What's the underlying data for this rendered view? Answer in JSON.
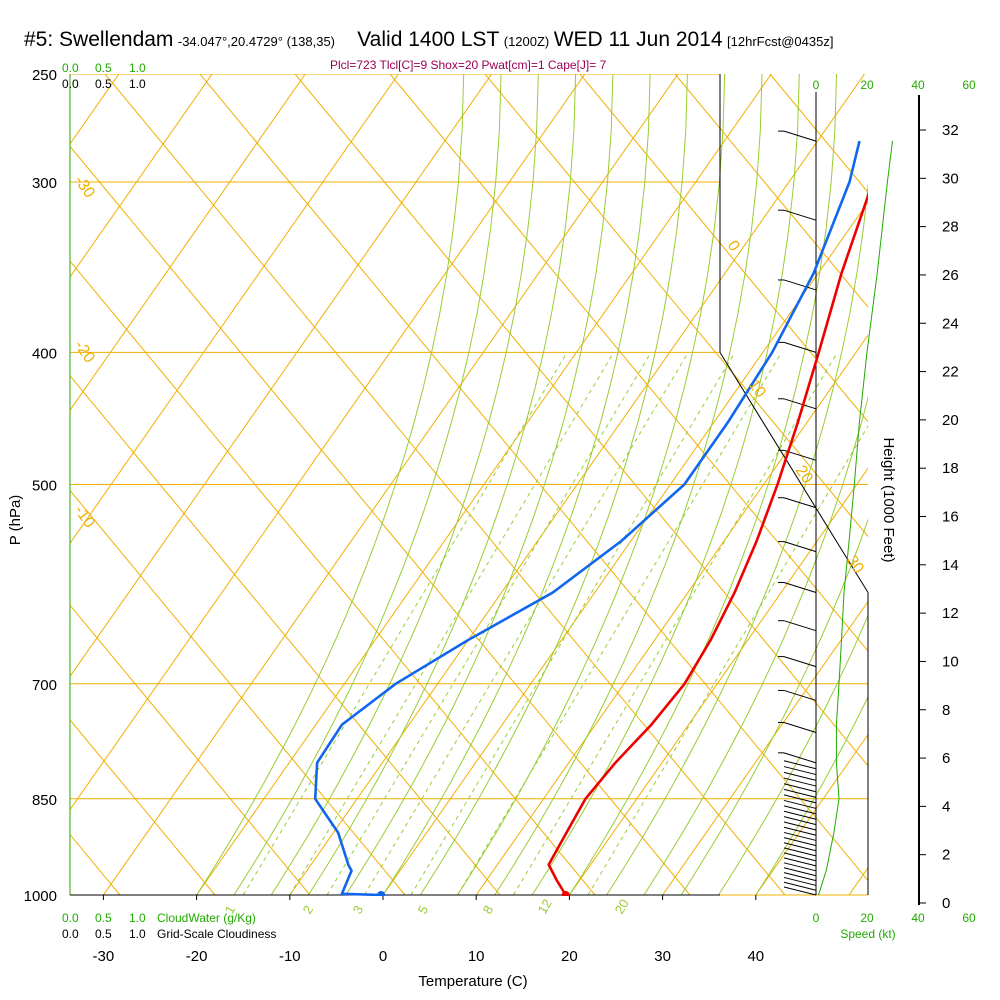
{
  "header": {
    "station": "#5: Swellendam",
    "coords": "-34.047°,20.4729° (138,35)",
    "valid": "Valid 1400 LST",
    "zulu": "(1200Z)",
    "date": "WED 11 Jun 2014",
    "forecast": "[12hrFcst@0435z]"
  },
  "params_line": "Plcl=723 Tlcl[C]=9 Shox=20 Pwat[cm]=1 Cape[J]= 7",
  "chart_data": {
    "type": "line",
    "title": "#5: Swellendam",
    "xlabel": "Temperature (C)",
    "ylabel": "P (hPa)",
    "y2label": "Height (1000 Feet)",
    "x_ticks": [
      "-30",
      "-20",
      "-10",
      "0",
      "10",
      "20",
      "30",
      "40"
    ],
    "y_ticks": [
      "250",
      "300",
      "400",
      "500",
      "700",
      "850",
      "1000"
    ],
    "y2_ticks": [
      "0",
      "2",
      "4",
      "6",
      "8",
      "10",
      "12",
      "14",
      "16",
      "18",
      "20",
      "22",
      "24",
      "26",
      "28",
      "30",
      "32"
    ],
    "xlim": [
      -35,
      36
    ],
    "ylim": [
      1000,
      250
    ],
    "series": [
      {
        "name": "Temperature",
        "color": "#ee0000",
        "points": [
          [
            19.6,
            1000
          ],
          [
            17.5,
            975
          ],
          [
            15.5,
            950
          ],
          [
            15.0,
            900
          ],
          [
            14.5,
            850
          ],
          [
            15.0,
            800
          ],
          [
            16.0,
            750
          ],
          [
            16.5,
            700
          ],
          [
            16.0,
            650
          ],
          [
            15.0,
            600
          ],
          [
            13.5,
            550
          ],
          [
            11.5,
            500
          ],
          [
            9.0,
            450
          ],
          [
            6.0,
            400
          ],
          [
            2.5,
            350
          ],
          [
            -1.0,
            300
          ],
          [
            -2.5,
            280
          ]
        ]
      },
      {
        "name": "Dewpoint",
        "color": "#1166ee",
        "points": [
          [
            -0.2,
            1000
          ],
          [
            -4.5,
            998
          ],
          [
            -5.2,
            960
          ],
          [
            -6.0,
            950
          ],
          [
            -9.5,
            900
          ],
          [
            -14.5,
            850
          ],
          [
            -17.0,
            800
          ],
          [
            -17.2,
            750
          ],
          [
            -14.5,
            700
          ],
          [
            -10.0,
            650
          ],
          [
            -4.5,
            600
          ],
          [
            -1.0,
            550
          ],
          [
            1.5,
            500
          ],
          [
            1.5,
            450
          ],
          [
            1.0,
            400
          ],
          [
            -0.5,
            350
          ],
          [
            -3.5,
            300
          ],
          [
            -5.5,
            280
          ]
        ]
      }
    ],
    "surface_points": [
      {
        "series": "Temperature",
        "x": 19.6,
        "p": 1000
      },
      {
        "series": "Dewpoint",
        "x": -0.2,
        "p": 1000
      }
    ],
    "isotherm_labels": [
      "-30",
      "-20",
      "-10",
      "0",
      "10",
      "20",
      "30"
    ],
    "mixing_ratio_labels": [
      "1",
      "2",
      "3",
      "5",
      "8",
      "12",
      "20"
    ],
    "wind_speed_ticks": [
      "0",
      "20",
      "40",
      "60"
    ],
    "wind_speed_label": "Speed (kt)",
    "wind_profile_speed": [
      [
        1,
        1000
      ],
      [
        4,
        960
      ],
      [
        7,
        900
      ],
      [
        9,
        850
      ],
      [
        8,
        800
      ],
      [
        8,
        750
      ],
      [
        9,
        700
      ],
      [
        10,
        650
      ],
      [
        11,
        600
      ],
      [
        13,
        550
      ],
      [
        15,
        500
      ],
      [
        17,
        450
      ],
      [
        20,
        400
      ],
      [
        24,
        350
      ],
      [
        28,
        300
      ],
      [
        30,
        280
      ]
    ],
    "cloud_scale_ticks": [
      "0.0",
      "0.5",
      "1.0"
    ],
    "cloud_water_label": "CloudWater (g/Kg)",
    "cloudiness_label": "Grid-Scale Cloudiness"
  }
}
